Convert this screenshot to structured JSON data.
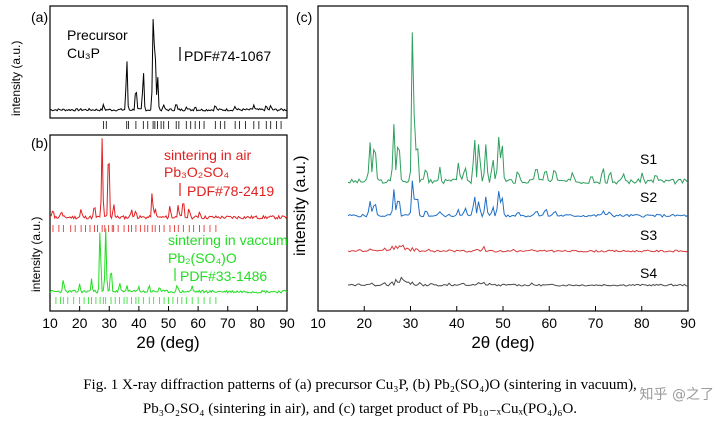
{
  "caption": {
    "line1": "Fig. 1 X-ray diffraction patterns of (a) precursor Cu₃P, (b) Pb₂(SO₄)O (sintering in vacuum),",
    "line2": "Pb₃O₂SO₄ (sintering in air), and (c) target product of Pb₁₀₋ₓCuₓ(PO₄)₆O."
  },
  "watermark": "知乎 @之了",
  "chart_data": [
    {
      "panel": "(a)",
      "type": "line",
      "xlabel": "",
      "ylabel": "intensity (a.u.)",
      "xlim": [
        10,
        90
      ],
      "labels": {
        "sample_line1": "Precursor",
        "sample_line2": "Cu₃P",
        "pdf": "PDF#74-1067"
      },
      "series": [
        {
          "name": "Cu₃P",
          "color": "#000000",
          "peaks": [
            [
              28.1,
              0.05
            ],
            [
              35.9,
              0.55
            ],
            [
              39.0,
              0.26
            ],
            [
              41.5,
              0.42
            ],
            [
              44.8,
              0.92
            ],
            [
              45.4,
              0.76
            ],
            [
              46.3,
              0.38
            ],
            [
              48.4,
              0.05
            ],
            [
              52.6,
              0.07
            ],
            [
              56.0,
              0.04
            ],
            [
              59.0,
              0.04
            ],
            [
              65.8,
              0.05
            ],
            [
              72.5,
              0.04
            ],
            [
              78.8,
              0.05
            ],
            [
              83.0,
              0.04
            ],
            [
              84.5,
              0.04
            ]
          ]
        }
      ],
      "reference_ticks": [
        28.1,
        29.0,
        35.9,
        36.5,
        39.0,
        41.5,
        43.0,
        44.8,
        45.4,
        46.3,
        47.5,
        48.4,
        50.0,
        52.6,
        53.5,
        56.0,
        57.5,
        59.0,
        60.5,
        62.0,
        65.8,
        67.5,
        69.0,
        72.5,
        74.0,
        76.0,
        78.8,
        80.5,
        83.0,
        84.5,
        86.5,
        88.0
      ]
    },
    {
      "panel": "(b)",
      "type": "line",
      "xlabel": "2θ (deg)",
      "ylabel": "intensity (a.u.)",
      "xlim": [
        10,
        90
      ],
      "xticks": [
        10,
        20,
        30,
        40,
        50,
        60,
        70,
        80,
        90
      ],
      "labels": {
        "air_line1": "sintering in air",
        "air_line2": "Pb₃O₂SO₄",
        "air_pdf": "PDF#78-2419",
        "vac_line1": "sintering in vaccum",
        "vac_line2": "Pb₂(SO₄)O",
        "vac_pdf": "PDF#33-1486"
      },
      "series": [
        {
          "name": "Pb₃O₂SO₄",
          "color": "#e02020",
          "peaks": [
            [
              11.0,
              0.12
            ],
            [
              13.8,
              0.08
            ],
            [
              20.5,
              0.1
            ],
            [
              25.0,
              0.15
            ],
            [
              27.6,
              0.95
            ],
            [
              29.8,
              0.95
            ],
            [
              31.5,
              0.18
            ],
            [
              37.5,
              0.12
            ],
            [
              39.0,
              0.1
            ],
            [
              44.5,
              0.3
            ],
            [
              45.5,
              0.12
            ],
            [
              50.5,
              0.14
            ],
            [
              53.3,
              0.18
            ],
            [
              55.0,
              0.22
            ],
            [
              57.0,
              0.12
            ],
            [
              60.5,
              0.08
            ]
          ]
        },
        {
          "name": "Pb₂(SO₄)O",
          "color": "#22dd22",
          "peaks": [
            [
              14.5,
              0.2
            ],
            [
              20.0,
              0.1
            ],
            [
              24.0,
              0.18
            ],
            [
              26.9,
              0.95
            ],
            [
              28.8,
              0.9
            ],
            [
              30.6,
              0.4
            ],
            [
              33.5,
              0.12
            ],
            [
              36.0,
              0.1
            ],
            [
              40.0,
              0.08
            ],
            [
              43.5,
              0.1
            ],
            [
              47.0,
              0.08
            ],
            [
              53.0,
              0.1
            ],
            [
              58.0,
              0.08
            ]
          ]
        }
      ],
      "reference_ticks_air": [
        11,
        13,
        14.5,
        17,
        18.5,
        20.5,
        22,
        23.5,
        25,
        26,
        27.6,
        28.5,
        29.8,
        31,
        31.5,
        33,
        35,
        36.5,
        37.5,
        39,
        40.5,
        42,
        43,
        44.5,
        45.5,
        47,
        48.5,
        50.5,
        52,
        53.3,
        55,
        57,
        58.5,
        60.5,
        62,
        64,
        66
      ],
      "reference_ticks_vac": [
        12,
        13.5,
        14.5,
        16,
        18,
        20,
        21.5,
        23,
        24,
        25.5,
        26.9,
        28,
        28.8,
        30.6,
        32,
        33.5,
        35,
        36,
        37.5,
        39,
        40,
        41.5,
        43.5,
        45,
        47,
        48.5,
        50,
        51.5,
        53,
        54.5,
        56,
        58,
        60,
        62,
        64,
        66
      ]
    },
    {
      "panel": "(c)",
      "type": "line",
      "xlabel": "2θ (deg)",
      "ylabel": "intensity (a.u.)",
      "xlim": [
        10,
        90
      ],
      "xticks": [
        10,
        20,
        30,
        40,
        50,
        60,
        70,
        80,
        90
      ],
      "series": [
        {
          "name": "S1",
          "color": "#2e9e5e",
          "peaks": [
            [
              20.8,
              0.24
            ],
            [
              21.8,
              0.28
            ],
            [
              26.0,
              0.35
            ],
            [
              27.0,
              0.3
            ],
            [
              30.1,
              1.0
            ],
            [
              31.0,
              0.3
            ],
            [
              33.0,
              0.1
            ],
            [
              36.0,
              0.08
            ],
            [
              40.0,
              0.12
            ],
            [
              41.5,
              0.1
            ],
            [
              43.5,
              0.28
            ],
            [
              44.5,
              0.25
            ],
            [
              46.0,
              0.22
            ],
            [
              47.5,
              0.14
            ],
            [
              48.8,
              0.28
            ],
            [
              49.5,
              0.24
            ],
            [
              53.0,
              0.08
            ],
            [
              57.0,
              0.12
            ],
            [
              59.0,
              0.1
            ],
            [
              61.0,
              0.1
            ],
            [
              65.0,
              0.06
            ],
            [
              69.0,
              0.06
            ],
            [
              71.5,
              0.1
            ],
            [
              73.0,
              0.08
            ],
            [
              76.0,
              0.05
            ],
            [
              80.0,
              0.05
            ],
            [
              83.0,
              0.05
            ]
          ]
        },
        {
          "name": "S2",
          "color": "#1f6fc5",
          "peaks": [
            [
              20.8,
              0.16
            ],
            [
              21.8,
              0.18
            ],
            [
              26.0,
              0.28
            ],
            [
              27.0,
              0.22
            ],
            [
              30.1,
              0.42
            ],
            [
              31.0,
              0.26
            ],
            [
              33.0,
              0.06
            ],
            [
              36.0,
              0.05
            ],
            [
              40.0,
              0.08
            ],
            [
              41.5,
              0.08
            ],
            [
              43.5,
              0.22
            ],
            [
              44.5,
              0.18
            ],
            [
              46.0,
              0.2
            ],
            [
              47.5,
              0.1
            ],
            [
              48.8,
              0.28
            ],
            [
              49.5,
              0.22
            ],
            [
              53.0,
              0.06
            ],
            [
              57.0,
              0.08
            ],
            [
              59.0,
              0.08
            ],
            [
              61.0,
              0.06
            ],
            [
              71.5,
              0.06
            ],
            [
              73.0,
              0.05
            ]
          ]
        },
        {
          "name": "S3",
          "color": "#d83a3a",
          "peaks": [
            [
              18.5,
              0.04
            ],
            [
              21.0,
              0.04
            ],
            [
              24.0,
              0.06
            ],
            [
              25.5,
              0.08
            ],
            [
              26.5,
              0.1
            ],
            [
              27.3,
              0.11
            ],
            [
              28.0,
              0.09
            ],
            [
              29.0,
              0.07
            ],
            [
              30.0,
              0.05
            ],
            [
              31.0,
              0.04
            ],
            [
              33.5,
              0.04
            ],
            [
              38.0,
              0.03
            ],
            [
              41.0,
              0.03
            ],
            [
              44.0,
              0.04
            ],
            [
              45.5,
              0.07
            ],
            [
              47.0,
              0.03
            ],
            [
              52.0,
              0.03
            ],
            [
              56.0,
              0.02
            ],
            [
              60.0,
              0.02
            ]
          ]
        },
        {
          "name": "S4",
          "color": "#4a4a4a",
          "peaks": [
            [
              18.5,
              0.03
            ],
            [
              21.0,
              0.04
            ],
            [
              24.0,
              0.05
            ],
            [
              25.5,
              0.07
            ],
            [
              26.5,
              0.09
            ],
            [
              27.5,
              0.13
            ],
            [
              28.2,
              0.1
            ],
            [
              29.0,
              0.07
            ],
            [
              30.0,
              0.05
            ],
            [
              31.5,
              0.04
            ],
            [
              34.0,
              0.03
            ],
            [
              38.0,
              0.03
            ],
            [
              41.0,
              0.03
            ],
            [
              44.5,
              0.04
            ],
            [
              45.5,
              0.06
            ],
            [
              47.0,
              0.03
            ],
            [
              52.0,
              0.02
            ],
            [
              56.0,
              0.02
            ]
          ]
        }
      ]
    }
  ]
}
